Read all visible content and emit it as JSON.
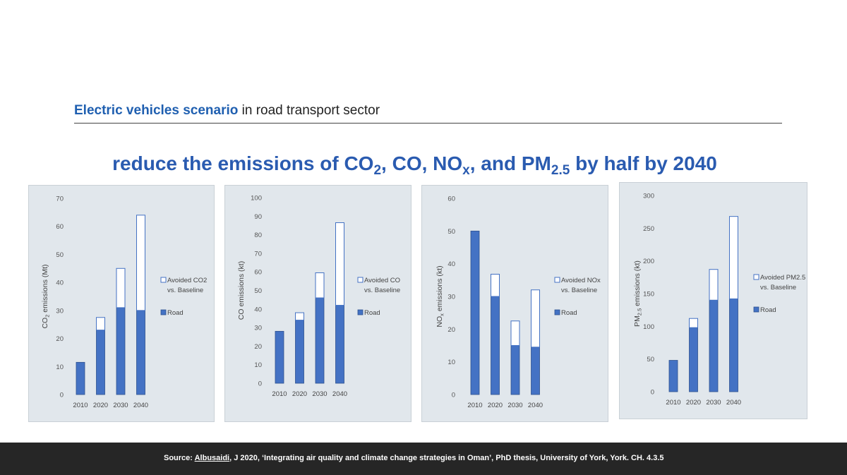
{
  "header": {
    "accent": "Electric vehicles scenario",
    "rest": " in road transport sector"
  },
  "headline": {
    "p1": "reduce the emissions of CO",
    "s1": "2",
    "p2": ", CO, NO",
    "s2": "x",
    "p3": ", and PM",
    "s3": "2.5",
    "p4": " by half by 2040"
  },
  "footer": {
    "pre": "Source: ",
    "author": "Albusaidi",
    "post": ", J 2020, ‘Integrating air quality and climate change strategies in Oman’, PhD thesis, University of York, York. CH. 4.3.5"
  },
  "colors": {
    "road": "#4472c4",
    "road_edge": "#2f528f",
    "panel_bg": "#e1e7ec"
  },
  "chart_data": [
    {
      "type": "bar",
      "stacked": true,
      "categories": [
        "2010",
        "2020",
        "2030",
        "2040"
      ],
      "ylim": [
        0,
        70
      ],
      "yticks": [
        0,
        10,
        20,
        30,
        40,
        50,
        60,
        70
      ],
      "ylabel": {
        "pre": "CO",
        "sub": "2",
        "post": " emissions (Mt)"
      },
      "series": [
        {
          "name": "Road",
          "values": [
            11.5,
            23,
            31,
            30
          ]
        },
        {
          "name": "Avoided CO2 vs. Baseline",
          "values": [
            0,
            4.5,
            14,
            34
          ]
        }
      ],
      "legend_avoided": [
        "Avoided CO2",
        "vs. Baseline"
      ],
      "legend_road": "Road"
    },
    {
      "type": "bar",
      "stacked": true,
      "categories": [
        "2010",
        "2020",
        "2030",
        "2040"
      ],
      "ylim": [
        0,
        100
      ],
      "yticks": [
        0,
        10,
        20,
        30,
        40,
        50,
        60,
        70,
        80,
        90,
        100
      ],
      "ylabel": {
        "pre": "CO emissions (kt)",
        "sub": "",
        "post": ""
      },
      "series": [
        {
          "name": "Road",
          "values": [
            28,
            34,
            46,
            42
          ]
        },
        {
          "name": "Avoided CO vs. Baseline",
          "values": [
            0,
            4,
            13.5,
            44.5
          ]
        }
      ],
      "legend_avoided": [
        "Avoided CO",
        "vs. Baseline"
      ],
      "legend_road": "Road"
    },
    {
      "type": "bar",
      "stacked": true,
      "categories": [
        "2010",
        "2020",
        "2030",
        "2040"
      ],
      "ylim": [
        0,
        60
      ],
      "yticks": [
        0,
        10,
        20,
        30,
        40,
        50,
        60
      ],
      "ylabel": {
        "pre": "NO",
        "sub": "x",
        "post": " emissions (kt)"
      },
      "series": [
        {
          "name": "Road",
          "values": [
            50,
            30,
            15,
            14.5
          ]
        },
        {
          "name": "Avoided NOx vs. Baseline",
          "values": [
            0,
            6.8,
            7.5,
            17.5
          ]
        }
      ],
      "legend_avoided": [
        "Avoided NOx",
        "vs. Baseline"
      ],
      "legend_road": "Road"
    },
    {
      "type": "bar",
      "stacked": true,
      "categories": [
        "2010",
        "2020",
        "2030",
        "2040"
      ],
      "ylim": [
        0,
        300
      ],
      "yticks": [
        0,
        50,
        100,
        150,
        200,
        250,
        300
      ],
      "ylabel": {
        "pre": "PM",
        "sub": "2.5",
        "post": " emissions (kt)"
      },
      "series": [
        {
          "name": "Road",
          "values": [
            48,
            98,
            140,
            142
          ]
        },
        {
          "name": "Avoided PM2.5 vs. Baseline",
          "values": [
            0,
            14,
            47,
            126
          ]
        }
      ],
      "legend_avoided": [
        "Avoided PM2.5",
        "vs. Baseline"
      ],
      "legend_road": "Road"
    }
  ]
}
